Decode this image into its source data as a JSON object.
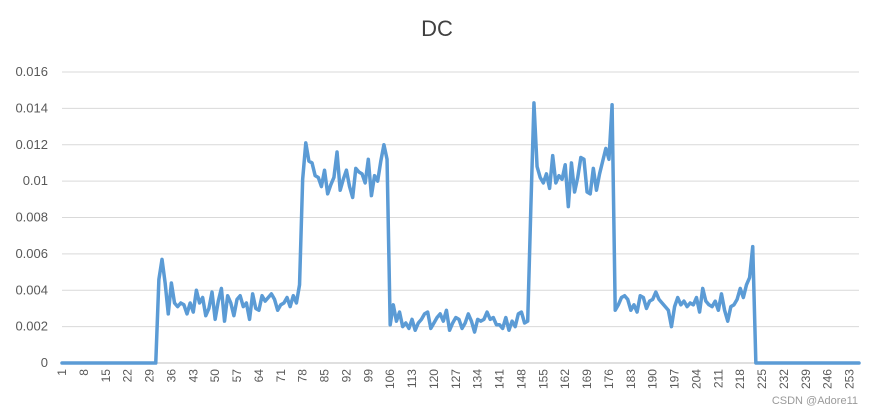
{
  "chart_data": {
    "type": "line",
    "title": "DC",
    "xlabel": "",
    "ylabel": "",
    "ylim": [
      0,
      0.016
    ],
    "yticks": [
      0,
      0.002,
      0.004,
      0.006,
      0.008,
      0.01,
      0.012,
      0.014,
      0.016
    ],
    "ytick_labels": [
      "0",
      "0.002",
      "0.004",
      "0.006",
      "0.008",
      "0.01",
      "0.012",
      "0.014",
      "0.016"
    ],
    "xlim": [
      1,
      257
    ],
    "xtick_labels": [
      "1",
      "8",
      "15",
      "22",
      "29",
      "36",
      "43",
      "50",
      "57",
      "64",
      "71",
      "78",
      "85",
      "92",
      "99",
      "106",
      "113",
      "120",
      "127",
      "134",
      "141",
      "148",
      "155",
      "162",
      "169",
      "176",
      "183",
      "190",
      "197",
      "204",
      "211",
      "218",
      "225",
      "232",
      "239",
      "246",
      "253"
    ],
    "grid": true,
    "legend": "none",
    "series": [
      {
        "color": "#5b9bd5",
        "values": [
          0,
          0,
          0,
          0,
          0,
          0,
          0,
          0,
          0,
          0,
          0,
          0,
          0,
          0,
          0,
          0,
          0,
          0,
          0,
          0,
          0,
          0,
          0,
          0,
          0,
          0,
          0,
          0,
          0,
          0,
          0,
          0.0046,
          0.0057,
          0.0044,
          0.0027,
          0.0044,
          0.0033,
          0.0031,
          0.0033,
          0.0032,
          0.0027,
          0.0033,
          0.0028,
          0.004,
          0.0033,
          0.0036,
          0.0026,
          0.003,
          0.0039,
          0.0024,
          0.0034,
          0.0041,
          0.0023,
          0.0037,
          0.0033,
          0.0026,
          0.0035,
          0.0037,
          0.0031,
          0.0033,
          0.0024,
          0.0038,
          0.003,
          0.0029,
          0.0037,
          0.0034,
          0.0036,
          0.0038,
          0.0035,
          0.0029,
          0.0032,
          0.0033,
          0.0036,
          0.0031,
          0.0037,
          0.0033,
          0.0043,
          0.0101,
          0.0121,
          0.0111,
          0.011,
          0.0103,
          0.0102,
          0.0097,
          0.0106,
          0.0093,
          0.0098,
          0.0102,
          0.0116,
          0.0095,
          0.0101,
          0.0106,
          0.0097,
          0.0091,
          0.0107,
          0.0105,
          0.0104,
          0.0099,
          0.0112,
          0.0092,
          0.0103,
          0.01,
          0.0111,
          0.012,
          0.0112,
          0.0021,
          0.0032,
          0.0023,
          0.0028,
          0.002,
          0.0022,
          0.0019,
          0.0024,
          0.0018,
          0.0022,
          0.0024,
          0.0027,
          0.0028,
          0.0019,
          0.0022,
          0.0025,
          0.0027,
          0.0023,
          0.0029,
          0.0018,
          0.0022,
          0.0025,
          0.0024,
          0.0019,
          0.0022,
          0.0027,
          0.0023,
          0.0017,
          0.0024,
          0.0023,
          0.0024,
          0.0028,
          0.0024,
          0.0025,
          0.0021,
          0.0021,
          0.0019,
          0.0025,
          0.0018,
          0.0023,
          0.002,
          0.0027,
          0.0028,
          0.0022,
          0.0023,
          0.0085,
          0.0143,
          0.0108,
          0.0102,
          0.0099,
          0.0104,
          0.0096,
          0.0114,
          0.0099,
          0.0103,
          0.0101,
          0.0109,
          0.0086,
          0.011,
          0.0094,
          0.0102,
          0.0113,
          0.0112,
          0.0094,
          0.0093,
          0.0107,
          0.0095,
          0.0104,
          0.0111,
          0.0118,
          0.0112,
          0.0142,
          0.0029,
          0.0032,
          0.0036,
          0.0037,
          0.0035,
          0.0029,
          0.0032,
          0.0028,
          0.0037,
          0.0036,
          0.003,
          0.0034,
          0.0035,
          0.0039,
          0.0035,
          0.0033,
          0.0031,
          0.0029,
          0.002,
          0.0031,
          0.0036,
          0.0032,
          0.0034,
          0.0031,
          0.0033,
          0.0032,
          0.0036,
          0.0028,
          0.0041,
          0.0034,
          0.0032,
          0.0031,
          0.0034,
          0.0029,
          0.0038,
          0.0029,
          0.0023,
          0.0031,
          0.0032,
          0.0035,
          0.0041,
          0.0036,
          0.0043,
          0.0047,
          0.0064,
          0,
          0,
          0,
          0,
          0,
          0,
          0,
          0,
          0,
          0,
          0,
          0,
          0,
          0,
          0,
          0,
          0,
          0,
          0,
          0,
          0,
          0,
          0,
          0,
          0,
          0,
          0,
          0,
          0,
          0,
          0,
          0,
          0,
          0
        ]
      }
    ]
  },
  "watermark": "CSDN @Adore11"
}
